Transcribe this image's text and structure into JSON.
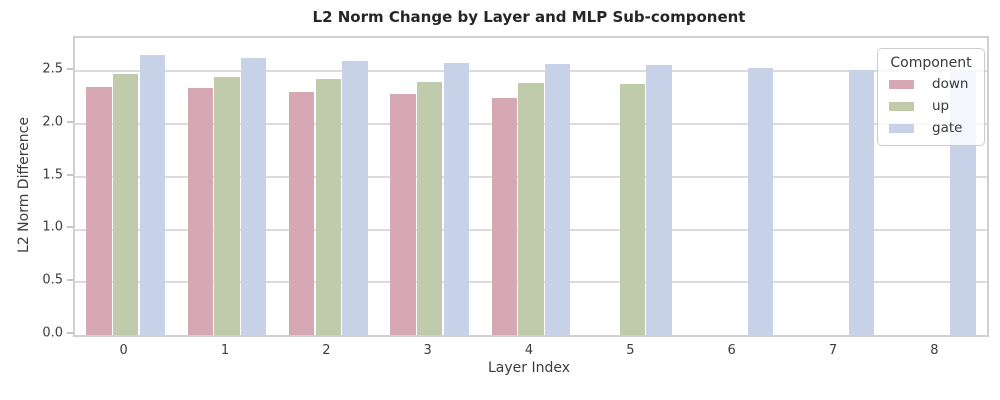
{
  "chart_data": {
    "type": "bar",
    "title": "L2 Norm Change by Layer and MLP Sub-component",
    "xlabel": "Layer Index",
    "ylabel": "L2 Norm Difference",
    "categories": [
      "0",
      "1",
      "2",
      "3",
      "4",
      "5",
      "6",
      "7",
      "8"
    ],
    "series": [
      {
        "name": "down",
        "color": "#d6a8b4",
        "values": [
          2.35,
          2.34,
          2.3,
          2.28,
          2.25,
          null,
          null,
          null,
          null
        ]
      },
      {
        "name": "up",
        "color": "#bfcbaa",
        "values": [
          2.47,
          2.45,
          2.43,
          2.4,
          2.39,
          2.38,
          null,
          null,
          null
        ]
      },
      {
        "name": "gate",
        "color": "#c7d2e9",
        "values": [
          2.65,
          2.63,
          2.6,
          2.58,
          2.57,
          2.56,
          2.53,
          2.51,
          2.49
        ]
      }
    ],
    "ylim": [
      0,
      2.815
    ],
    "yticks": [
      0.0,
      0.5,
      1.0,
      1.5,
      2.0,
      2.5
    ],
    "ytick_labels": [
      "0.0",
      "0.5",
      "1.0",
      "1.5",
      "2.0",
      "2.5"
    ],
    "grid": true,
    "legend": {
      "title": "Component",
      "position": "upper right",
      "entries": [
        "down",
        "up",
        "gate"
      ]
    }
  }
}
